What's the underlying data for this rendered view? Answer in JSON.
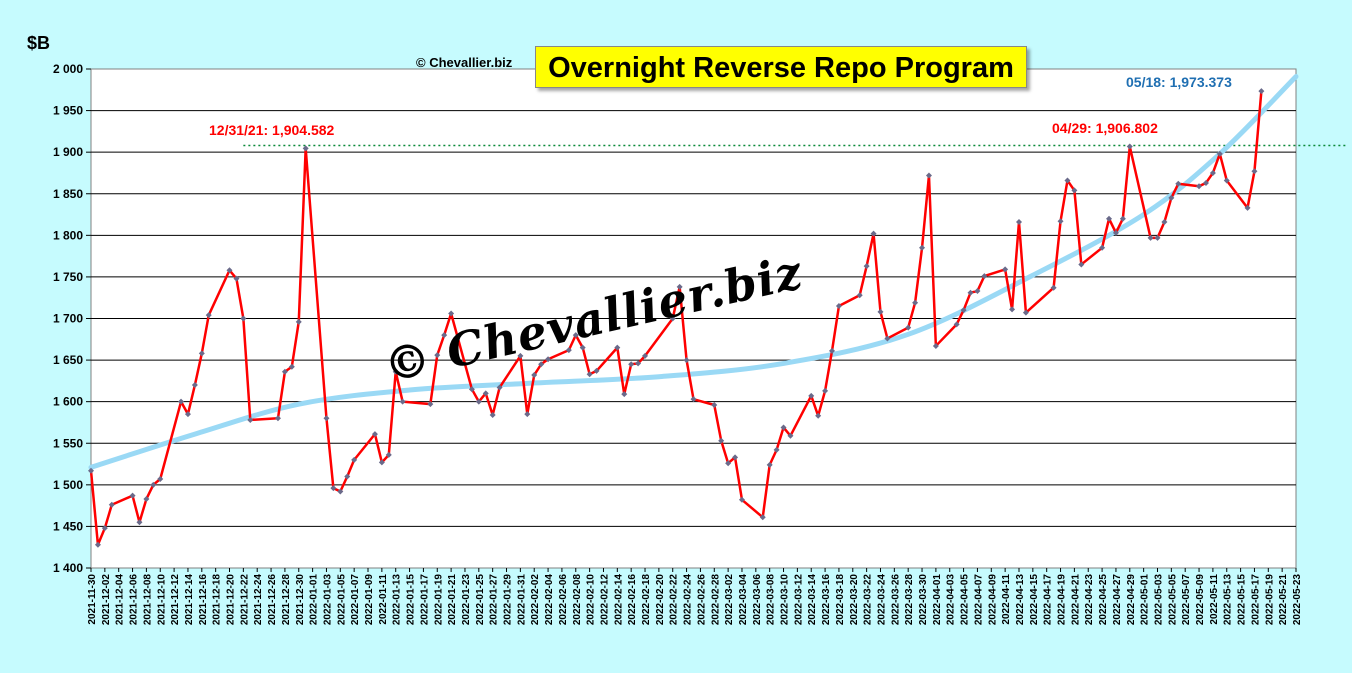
{
  "page": {
    "unit_label": "$B",
    "credit": "© Chevallier.biz",
    "watermark": "© Chevallier.biz"
  },
  "chart_data": {
    "type": "line",
    "title": "Overnight Reverse Repo Program",
    "xlabel": "",
    "ylabel": "$B",
    "ylim": [
      1400,
      2000
    ],
    "yticks": [
      "1 400",
      "1 450",
      "1 500",
      "1 550",
      "1 600",
      "1 650",
      "1 700",
      "1 750",
      "1 800",
      "1 850",
      "1 900",
      "1 950",
      "2 000"
    ],
    "xlim": [
      "2021-11-30",
      "2022-05-23"
    ],
    "x_tick_every_days": 2,
    "grid": "horizontal",
    "line_color": "#ff0000",
    "marker_color": "#6a6a8a",
    "trend_color": "#9ad9f5",
    "series": [
      {
        "values": [
          [
            "2021-11-30",
            1517
          ],
          [
            "2021-12-01",
            1428
          ],
          [
            "2021-12-02",
            1448
          ],
          [
            "2021-12-03",
            1476
          ],
          [
            "2021-12-06",
            1487
          ],
          [
            "2021-12-07",
            1455
          ],
          [
            "2021-12-08",
            1483
          ],
          [
            "2021-12-09",
            1500
          ],
          [
            "2021-12-10",
            1507
          ],
          [
            "2021-12-13",
            1600
          ],
          [
            "2021-12-14",
            1585
          ],
          [
            "2021-12-15",
            1620
          ],
          [
            "2021-12-16",
            1658
          ],
          [
            "2021-12-17",
            1704
          ],
          [
            "2021-12-20",
            1758
          ],
          [
            "2021-12-21",
            1748
          ],
          [
            "2021-12-22",
            1700
          ],
          [
            "2021-12-23",
            1578
          ],
          [
            "2021-12-27",
            1580
          ],
          [
            "2021-12-28",
            1636
          ],
          [
            "2021-12-29",
            1642
          ],
          [
            "2021-12-30",
            1696
          ],
          [
            "2021-12-31",
            1904.582
          ],
          [
            "2022-01-03",
            1580
          ],
          [
            "2022-01-04",
            1496
          ],
          [
            "2022-01-05",
            1492
          ],
          [
            "2022-01-06",
            1510
          ],
          [
            "2022-01-07",
            1530
          ],
          [
            "2022-01-10",
            1561
          ],
          [
            "2022-01-11",
            1527
          ],
          [
            "2022-01-12",
            1536
          ],
          [
            "2022-01-13",
            1636
          ],
          [
            "2022-01-14",
            1600
          ],
          [
            "2022-01-18",
            1597
          ],
          [
            "2022-01-19",
            1656
          ],
          [
            "2022-01-20",
            1680
          ],
          [
            "2022-01-21",
            1706
          ],
          [
            "2022-01-24",
            1615
          ],
          [
            "2022-01-25",
            1600
          ],
          [
            "2022-01-26",
            1610
          ],
          [
            "2022-01-27",
            1584
          ],
          [
            "2022-01-28",
            1617
          ],
          [
            "2022-01-31",
            1655
          ],
          [
            "2022-02-01",
            1585
          ],
          [
            "2022-02-02",
            1632
          ],
          [
            "2022-02-03",
            1645
          ],
          [
            "2022-02-04",
            1651
          ],
          [
            "2022-02-07",
            1662
          ],
          [
            "2022-02-08",
            1680
          ],
          [
            "2022-02-09",
            1665
          ],
          [
            "2022-02-10",
            1633
          ],
          [
            "2022-02-11",
            1637
          ],
          [
            "2022-02-14",
            1665
          ],
          [
            "2022-02-15",
            1609
          ],
          [
            "2022-02-16",
            1645
          ],
          [
            "2022-02-17",
            1646
          ],
          [
            "2022-02-18",
            1655
          ],
          [
            "2022-02-22",
            1700
          ],
          [
            "2022-02-23",
            1738
          ],
          [
            "2022-02-24",
            1650
          ],
          [
            "2022-02-25",
            1603
          ],
          [
            "2022-02-28",
            1596
          ],
          [
            "2022-03-01",
            1553
          ],
          [
            "2022-03-02",
            1526
          ],
          [
            "2022-03-03",
            1533
          ],
          [
            "2022-03-04",
            1482
          ],
          [
            "2022-03-07",
            1461
          ],
          [
            "2022-03-08",
            1524
          ],
          [
            "2022-03-09",
            1542
          ],
          [
            "2022-03-10",
            1569
          ],
          [
            "2022-03-11",
            1559
          ],
          [
            "2022-03-14",
            1607
          ],
          [
            "2022-03-15",
            1583
          ],
          [
            "2022-03-16",
            1613
          ],
          [
            "2022-03-17",
            1661
          ],
          [
            "2022-03-18",
            1715
          ],
          [
            "2022-03-21",
            1728
          ],
          [
            "2022-03-22",
            1763
          ],
          [
            "2022-03-23",
            1802
          ],
          [
            "2022-03-24",
            1708
          ],
          [
            "2022-03-25",
            1676
          ],
          [
            "2022-03-28",
            1689
          ],
          [
            "2022-03-29",
            1719
          ],
          [
            "2022-03-30",
            1785
          ],
          [
            "2022-03-31",
            1872
          ],
          [
            "2022-04-01",
            1667
          ],
          [
            "2022-04-04",
            1693
          ],
          [
            "2022-04-05",
            1710
          ],
          [
            "2022-04-06",
            1731
          ],
          [
            "2022-04-07",
            1733
          ],
          [
            "2022-04-08",
            1751
          ],
          [
            "2022-04-11",
            1759
          ],
          [
            "2022-04-12",
            1711
          ],
          [
            "2022-04-13",
            1816
          ],
          [
            "2022-04-14",
            1707
          ],
          [
            "2022-04-18",
            1737
          ],
          [
            "2022-04-19",
            1817
          ],
          [
            "2022-04-20",
            1866
          ],
          [
            "2022-04-21",
            1854
          ],
          [
            "2022-04-22",
            1765
          ],
          [
            "2022-04-25",
            1785
          ],
          [
            "2022-04-26",
            1820
          ],
          [
            "2022-04-27",
            1803
          ],
          [
            "2022-04-28",
            1820
          ],
          [
            "2022-04-29",
            1906.802
          ],
          [
            "2022-05-02",
            1797
          ],
          [
            "2022-05-03",
            1797
          ],
          [
            "2022-05-04",
            1816
          ],
          [
            "2022-05-05",
            1845
          ],
          [
            "2022-05-06",
            1862
          ],
          [
            "2022-05-09",
            1859
          ],
          [
            "2022-05-10",
            1863
          ],
          [
            "2022-05-11",
            1875
          ],
          [
            "2022-05-12",
            1898
          ],
          [
            "2022-05-13",
            1866
          ],
          [
            "2022-05-16",
            1833
          ],
          [
            "2022-05-17",
            1877
          ],
          [
            "2022-05-18",
            1973.373
          ]
        ]
      }
    ],
    "trendline": {
      "values": [
        [
          "2021-11-30",
          1521
        ],
        [
          "2021-12-15",
          1561
        ],
        [
          "2021-12-30",
          1597
        ],
        [
          "2022-01-15",
          1614
        ],
        [
          "2022-02-01",
          1622
        ],
        [
          "2022-02-20",
          1630
        ],
        [
          "2022-03-10",
          1646
        ],
        [
          "2022-03-28",
          1681
        ],
        [
          "2022-04-15",
          1752
        ],
        [
          "2022-05-01",
          1825
        ],
        [
          "2022-05-12",
          1898
        ],
        [
          "2022-05-23",
          1991
        ]
      ]
    },
    "reference_line": {
      "value": 1908,
      "from": "2021-12-22",
      "color": "#0a8a3a"
    },
    "annotations": [
      {
        "text": "12/31/21: 1,904.582",
        "color": "red"
      },
      {
        "text": "04/29: 1,906.802",
        "color": "red"
      },
      {
        "text": "05/18: 1,973.373",
        "color": "blue"
      }
    ]
  }
}
